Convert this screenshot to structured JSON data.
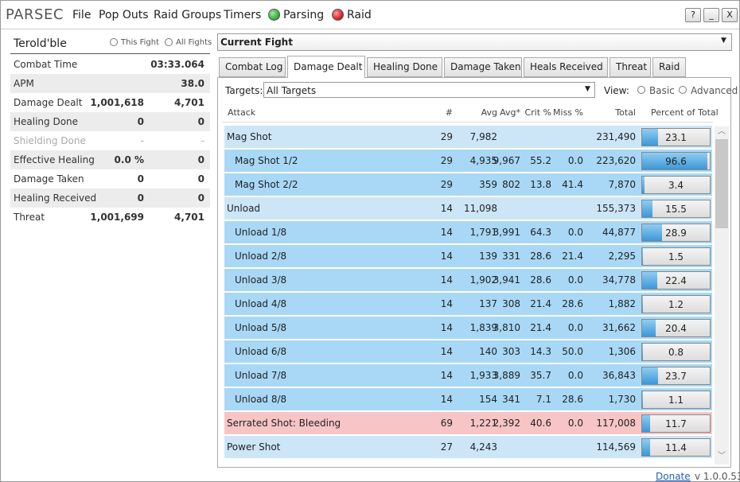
{
  "app": {
    "title": "PARSEC",
    "menu": [
      "File",
      "Pop Outs",
      "Raid Groups",
      "Timers"
    ],
    "status": [
      {
        "label": "Parsing",
        "color": "#3cb043"
      },
      {
        "label": "Raid",
        "color": "#d9262c"
      }
    ],
    "window_buttons": [
      "?",
      "_",
      "X"
    ]
  },
  "left": {
    "player": "Terold'ble",
    "options": [
      "This Fight",
      "All Fights"
    ],
    "stats": [
      {
        "label": "Combat Time",
        "rate": "03:33.064"
      },
      {
        "label": "APM",
        "rate": "38.0"
      },
      {
        "label": "Damage Dealt",
        "total": "1,001,618",
        "rate": "4,701"
      },
      {
        "label": "Healing Done",
        "total": "0",
        "rate": "0"
      },
      {
        "label": "Shielding Done",
        "total": "-",
        "rate": "-",
        "disabled": true
      },
      {
        "label": "Effective Healing",
        "total": "0.0 %",
        "rate": "0"
      },
      {
        "label": "Damage Taken",
        "total": "0",
        "rate": "0"
      },
      {
        "label": "Healing Received",
        "total": "0",
        "rate": "0"
      },
      {
        "label": "Threat",
        "total": "1,001,699",
        "rate": "4,701"
      }
    ]
  },
  "right": {
    "fight": "Current Fight",
    "tabs": [
      "Combat Log",
      "Damage Dealt",
      "Healing Done",
      "Damage Taken",
      "Heals Received",
      "Threat",
      "Raid"
    ],
    "active_tab": 1,
    "targets_label": "Targets:",
    "targets": "All Targets",
    "view_label": "View:",
    "view_options": [
      "Basic",
      "Advanced"
    ],
    "columns": [
      "Attack",
      "#",
      "Avg",
      "Avg*",
      "Crit %",
      "Miss %",
      "Total",
      "Percent of Total"
    ],
    "rows": [
      {
        "name": "Mag Shot",
        "count": "29",
        "avg": "7,982",
        "total": "231,490",
        "pct": 23.1,
        "color": "#cce6f8"
      },
      {
        "name": "Mag Shot 1/2",
        "count": "29",
        "avg": "4,935",
        "avg_star": "9,967",
        "crit": "55.2",
        "miss": "0.0",
        "total": "223,620",
        "pct": 96.6,
        "color": "#a8d8f6",
        "indent": true
      },
      {
        "name": "Mag Shot 2/2",
        "count": "29",
        "avg": "359",
        "avg_star": "802",
        "crit": "13.8",
        "miss": "41.4",
        "total": "7,870",
        "pct": 3.4,
        "color": "#a8d8f6",
        "indent": true
      },
      {
        "name": "Unload",
        "count": "14",
        "avg": "11,098",
        "total": "155,373",
        "pct": 15.5,
        "color": "#cce6f8"
      },
      {
        "name": "Unload 1/8",
        "count": "14",
        "avg": "1,791",
        "avg_star": "3,991",
        "crit": "64.3",
        "miss": "0.0",
        "total": "44,877",
        "pct": 28.9,
        "color": "#a8d8f6",
        "indent": true
      },
      {
        "name": "Unload 2/8",
        "count": "14",
        "avg": "139",
        "avg_star": "331",
        "crit": "28.6",
        "miss": "21.4",
        "total": "2,295",
        "pct": 1.5,
        "color": "#a8d8f6",
        "indent": true
      },
      {
        "name": "Unload 3/8",
        "count": "14",
        "avg": "1,902",
        "avg_star": "3,941",
        "crit": "28.6",
        "miss": "0.0",
        "total": "34,778",
        "pct": 22.4,
        "color": "#a8d8f6",
        "indent": true
      },
      {
        "name": "Unload 4/8",
        "count": "14",
        "avg": "137",
        "avg_star": "308",
        "crit": "21.4",
        "miss": "28.6",
        "total": "1,882",
        "pct": 1.2,
        "color": "#a8d8f6",
        "indent": true
      },
      {
        "name": "Unload 5/8",
        "count": "14",
        "avg": "1,839",
        "avg_star": "3,810",
        "crit": "21.4",
        "miss": "0.0",
        "total": "31,662",
        "pct": 20.4,
        "color": "#a8d8f6",
        "indent": true
      },
      {
        "name": "Unload 6/8",
        "count": "14",
        "avg": "140",
        "avg_star": "303",
        "crit": "14.3",
        "miss": "50.0",
        "total": "1,306",
        "pct": 0.8,
        "color": "#a8d8f6",
        "indent": true
      },
      {
        "name": "Unload 7/8",
        "count": "14",
        "avg": "1,933",
        "avg_star": "3,889",
        "crit": "35.7",
        "miss": "0.0",
        "total": "36,843",
        "pct": 23.7,
        "color": "#a8d8f6",
        "indent": true
      },
      {
        "name": "Unload 8/8",
        "count": "14",
        "avg": "154",
        "avg_star": "341",
        "crit": "7.1",
        "miss": "28.6",
        "total": "1,730",
        "pct": 1.1,
        "color": "#a8d8f6",
        "indent": true
      },
      {
        "name": "Serrated Shot: Bleeding",
        "count": "69",
        "avg": "1,221",
        "avg_star": "2,392",
        "crit": "40.6",
        "miss": "0.0",
        "total": "117,008",
        "pct": 11.7,
        "color": "#f7c5c5"
      },
      {
        "name": "Power Shot",
        "count": "27",
        "avg": "4,243",
        "total": "114,569",
        "pct": 11.4,
        "color": "#cce6f8"
      }
    ]
  },
  "footer": {
    "donate": "Donate",
    "version": "v 1.0.0.53"
  }
}
